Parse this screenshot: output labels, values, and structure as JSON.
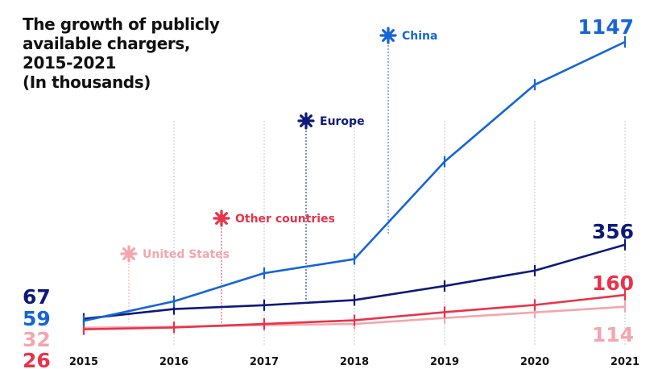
{
  "chart_data": {
    "type": "line",
    "title_lines": [
      "The growth of publicly",
      "available chargers,",
      "2015-2021",
      "(In thousands)"
    ],
    "categories": [
      "2015",
      "2016",
      "2017",
      "2018",
      "2019",
      "2020",
      "2021"
    ],
    "ylim": [
      0,
      1147
    ],
    "grid": "vertical dotted lines at each year",
    "series": [
      {
        "name": "China",
        "color": "#1565d8",
        "values": [
          59,
          135,
          245,
          300,
          680,
          980,
          1147
        ],
        "start_label": "59",
        "end_label": "1147"
      },
      {
        "name": "Europe",
        "color": "#0d1a7a",
        "values": [
          67,
          105,
          120,
          140,
          195,
          255,
          356
        ],
        "start_label": "67",
        "end_label": "356"
      },
      {
        "name": "Other countries",
        "color": "#e8334a",
        "values": [
          26,
          33,
          47,
          61,
          93,
          121,
          160
        ],
        "start_label": "26",
        "end_label": "160"
      },
      {
        "name": "United States",
        "color": "#f4a6ae",
        "values": [
          32,
          36,
          42,
          47,
          70,
          92,
          114
        ],
        "start_label": "32",
        "end_label": "114"
      }
    ]
  }
}
